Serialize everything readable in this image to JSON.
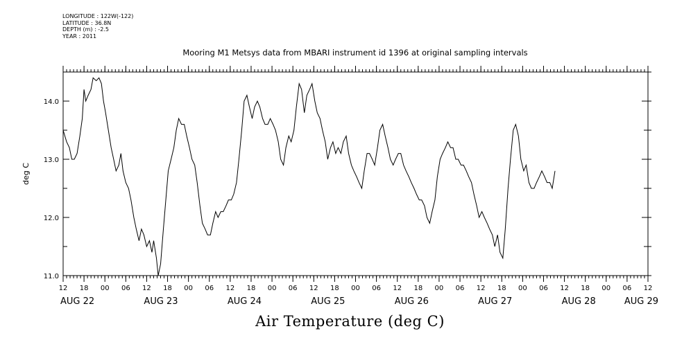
{
  "metadata": {
    "longitude": "LONGITUDE : 122W(-122)",
    "latitude": "LATITUDE : 36.8N",
    "depth": "DEPTH (m) : -2.5",
    "year": "YEAR : 2011"
  },
  "chart_data": {
    "type": "line",
    "title": "Mooring M1 Metsys data from MBARI instrument id 1396 at original sampling intervals",
    "xlabel": "Air Temperature (deg C)",
    "ylabel": "deg C",
    "ylim": [
      11.0,
      14.5
    ],
    "yticks": [
      "11.0",
      "12.0",
      "13.0",
      "14.0"
    ],
    "xlim_hours": [
      0,
      168
    ],
    "xtick_hour_labels": [
      "12",
      "18",
      "00",
      "06",
      "12",
      "18",
      "00",
      "06",
      "12",
      "18",
      "00",
      "06",
      "12",
      "18",
      "00",
      "06",
      "12",
      "18",
      "00",
      "06",
      "12",
      "18",
      "00",
      "06",
      "12",
      "18",
      "00",
      "06",
      "12"
    ],
    "date_labels": [
      {
        "hour": 0,
        "label": "AUG 22"
      },
      {
        "hour": 24,
        "label": "AUG 23"
      },
      {
        "hour": 48,
        "label": "AUG 24"
      },
      {
        "hour": 72,
        "label": "AUG 25"
      },
      {
        "hour": 96,
        "label": "AUG 26"
      },
      {
        "hour": 120,
        "label": "AUG 27"
      },
      {
        "hour": 144,
        "label": "AUG 28"
      },
      {
        "hour": 162,
        "label": "AUG 29"
      }
    ],
    "series": [
      {
        "color": "#000000",
        "points": [
          [
            0,
            13.5
          ],
          [
            1,
            13.3
          ],
          [
            1.8,
            13.2
          ],
          [
            2.5,
            13.0
          ],
          [
            3.2,
            13.0
          ],
          [
            4,
            13.1
          ],
          [
            4.8,
            13.4
          ],
          [
            5.5,
            13.7
          ],
          [
            6,
            14.2
          ],
          [
            6.5,
            14.0
          ],
          [
            7.2,
            14.1
          ],
          [
            8,
            14.2
          ],
          [
            8.6,
            14.4
          ],
          [
            9.5,
            14.35
          ],
          [
            10.3,
            14.4
          ],
          [
            11,
            14.3
          ],
          [
            11.6,
            14.0
          ],
          [
            12.2,
            13.8
          ],
          [
            13,
            13.5
          ],
          [
            13.8,
            13.2
          ],
          [
            14.5,
            13.0
          ],
          [
            15.2,
            12.8
          ],
          [
            16,
            12.9
          ],
          [
            16.6,
            13.1
          ],
          [
            17.2,
            12.8
          ],
          [
            18,
            12.6
          ],
          [
            18.8,
            12.5
          ],
          [
            19.5,
            12.3
          ],
          [
            20.3,
            12.0
          ],
          [
            21,
            11.8
          ],
          [
            21.8,
            11.6
          ],
          [
            22.5,
            11.8
          ],
          [
            23.2,
            11.7
          ],
          [
            24,
            11.5
          ],
          [
            24.8,
            11.6
          ],
          [
            25.5,
            11.4
          ],
          [
            26,
            11.6
          ],
          [
            26.8,
            11.3
          ],
          [
            27.3,
            11.0
          ],
          [
            28,
            11.2
          ],
          [
            28.8,
            11.8
          ],
          [
            29.5,
            12.3
          ],
          [
            30.2,
            12.8
          ],
          [
            31,
            13.0
          ],
          [
            31.8,
            13.2
          ],
          [
            32.5,
            13.5
          ],
          [
            33.2,
            13.7
          ],
          [
            34,
            13.6
          ],
          [
            34.8,
            13.6
          ],
          [
            35.5,
            13.4
          ],
          [
            36.3,
            13.2
          ],
          [
            37,
            13.0
          ],
          [
            37.8,
            12.9
          ],
          [
            38.5,
            12.6
          ],
          [
            39.3,
            12.2
          ],
          [
            40,
            11.9
          ],
          [
            40.8,
            11.8
          ],
          [
            41.5,
            11.7
          ],
          [
            42.3,
            11.7
          ],
          [
            43,
            11.9
          ],
          [
            43.8,
            12.1
          ],
          [
            44.5,
            12.0
          ],
          [
            45.3,
            12.1
          ],
          [
            46,
            12.1
          ],
          [
            46.8,
            12.2
          ],
          [
            47.5,
            12.3
          ],
          [
            48.3,
            12.3
          ],
          [
            49,
            12.4
          ],
          [
            49.8,
            12.6
          ],
          [
            50.5,
            13.0
          ],
          [
            51.3,
            13.5
          ],
          [
            52,
            14.0
          ],
          [
            52.8,
            14.1
          ],
          [
            53.5,
            13.9
          ],
          [
            54.3,
            13.7
          ],
          [
            55,
            13.9
          ],
          [
            55.8,
            14.0
          ],
          [
            56.5,
            13.9
          ],
          [
            57.3,
            13.7
          ],
          [
            58,
            13.6
          ],
          [
            58.8,
            13.6
          ],
          [
            59.5,
            13.7
          ],
          [
            60.3,
            13.6
          ],
          [
            61,
            13.5
          ],
          [
            61.8,
            13.3
          ],
          [
            62.5,
            13.0
          ],
          [
            63.3,
            12.9
          ],
          [
            64,
            13.2
          ],
          [
            64.8,
            13.4
          ],
          [
            65.5,
            13.3
          ],
          [
            66.3,
            13.5
          ],
          [
            67,
            13.9
          ],
          [
            67.8,
            14.3
          ],
          [
            68.5,
            14.2
          ],
          [
            69.3,
            13.8
          ],
          [
            70,
            14.1
          ],
          [
            70.8,
            14.2
          ],
          [
            71.5,
            14.3
          ],
          [
            72.3,
            14.0
          ],
          [
            73,
            13.8
          ],
          [
            73.8,
            13.7
          ],
          [
            74.5,
            13.5
          ],
          [
            75.3,
            13.3
          ],
          [
            76,
            13.0
          ],
          [
            76.8,
            13.2
          ],
          [
            77.5,
            13.3
          ],
          [
            78.3,
            13.1
          ],
          [
            79,
            13.2
          ],
          [
            79.8,
            13.1
          ],
          [
            80.5,
            13.3
          ],
          [
            81.3,
            13.4
          ],
          [
            82,
            13.1
          ],
          [
            82.8,
            12.9
          ],
          [
            83.5,
            12.8
          ],
          [
            84.3,
            12.7
          ],
          [
            85,
            12.6
          ],
          [
            85.8,
            12.5
          ],
          [
            86.5,
            12.8
          ],
          [
            87.3,
            13.1
          ],
          [
            88,
            13.1
          ],
          [
            88.8,
            13.0
          ],
          [
            89.5,
            12.9
          ],
          [
            90.3,
            13.2
          ],
          [
            91,
            13.5
          ],
          [
            91.8,
            13.6
          ],
          [
            92.5,
            13.4
          ],
          [
            93.3,
            13.2
          ],
          [
            94,
            13.0
          ],
          [
            94.8,
            12.9
          ],
          [
            95.5,
            13.0
          ],
          [
            96.3,
            13.1
          ],
          [
            97,
            13.1
          ],
          [
            97.8,
            12.9
          ],
          [
            98.5,
            12.8
          ],
          [
            99.3,
            12.7
          ],
          [
            100,
            12.6
          ],
          [
            100.8,
            12.5
          ],
          [
            101.5,
            12.4
          ],
          [
            102.3,
            12.3
          ],
          [
            103,
            12.3
          ],
          [
            103.8,
            12.2
          ],
          [
            104.5,
            12.0
          ],
          [
            105.3,
            11.9
          ],
          [
            106,
            12.1
          ],
          [
            106.8,
            12.3
          ],
          [
            107.5,
            12.7
          ],
          [
            108.3,
            13.0
          ],
          [
            109,
            13.1
          ],
          [
            109.8,
            13.2
          ],
          [
            110.5,
            13.3
          ],
          [
            111.3,
            13.2
          ],
          [
            112,
            13.2
          ],
          [
            112.8,
            13.0
          ],
          [
            113.5,
            13.0
          ],
          [
            114.3,
            12.9
          ],
          [
            115,
            12.9
          ],
          [
            115.8,
            12.8
          ],
          [
            116.5,
            12.7
          ],
          [
            117.3,
            12.6
          ],
          [
            118,
            12.4
          ],
          [
            118.8,
            12.2
          ],
          [
            119.5,
            12.0
          ],
          [
            120.3,
            12.1
          ],
          [
            121,
            12.0
          ],
          [
            121.8,
            11.9
          ],
          [
            122.5,
            11.8
          ],
          [
            123.3,
            11.7
          ],
          [
            124,
            11.5
          ],
          [
            124.8,
            11.7
          ],
          [
            125.5,
            11.4
          ],
          [
            126.3,
            11.3
          ],
          [
            127,
            11.8
          ],
          [
            127.8,
            12.5
          ],
          [
            128.5,
            13.0
          ],
          [
            129.3,
            13.5
          ],
          [
            130,
            13.6
          ],
          [
            130.8,
            13.4
          ],
          [
            131.5,
            13.0
          ],
          [
            132.3,
            12.8
          ],
          [
            133,
            12.9
          ],
          [
            133.8,
            12.6
          ],
          [
            134.5,
            12.5
          ],
          [
            135.3,
            12.5
          ],
          [
            136,
            12.6
          ],
          [
            136.8,
            12.7
          ],
          [
            137.5,
            12.8
          ],
          [
            138.3,
            12.7
          ],
          [
            139,
            12.6
          ],
          [
            139.8,
            12.6
          ],
          [
            140.5,
            12.5
          ],
          [
            141.3,
            12.8
          ]
        ]
      }
    ]
  }
}
